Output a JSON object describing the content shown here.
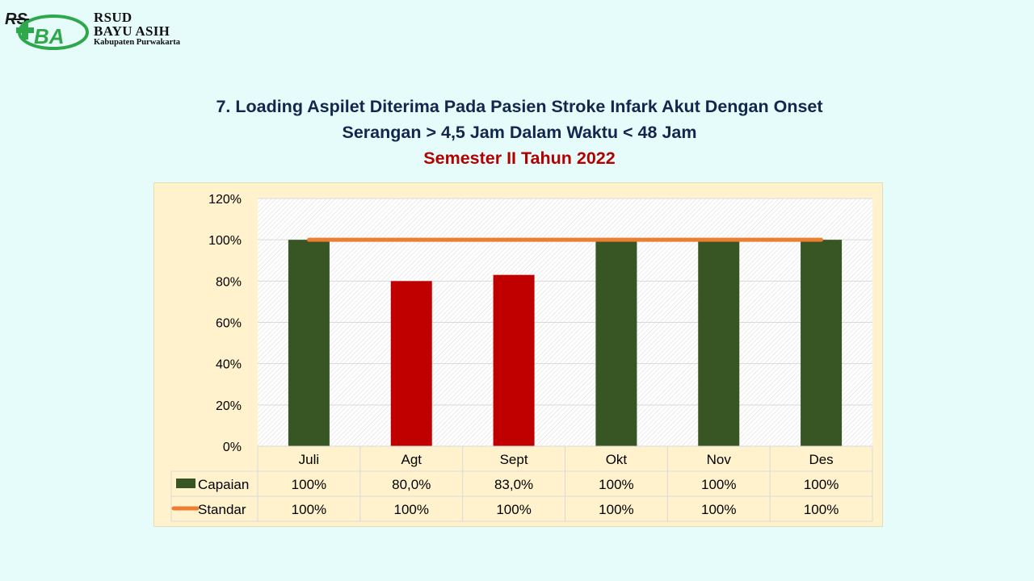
{
  "logo": {
    "line1": "RSUD",
    "line2": "BAYU ASIH",
    "line3": "Kabupaten Purwakarta"
  },
  "title": {
    "line1": "7. Loading Aspilet Diterima Pada Pasien Stroke Infark Akut Dengan Onset",
    "line2": "Serangan > 4,5 Jam Dalam Waktu < 48 Jam",
    "line3": "Semester II Tahun 2022"
  },
  "colors": {
    "background": "#e6fcfa",
    "chart_area": "#fff2cc",
    "bar_green": "#375623",
    "bar_red": "#c00000",
    "line_orange": "#ed7d31",
    "title_navy": "#12264e",
    "title_red": "#b40000"
  },
  "chart_data": {
    "type": "bar",
    "categories": [
      "Juli",
      "Agt",
      "Sept",
      "Okt",
      "Nov",
      "Des"
    ],
    "series": [
      {
        "name": "Capaian",
        "type": "bar",
        "values": [
          100,
          80,
          83,
          100,
          100,
          100
        ],
        "labels": [
          "100%",
          "80,0%",
          "83,0%",
          "100%",
          "100%",
          "100%"
        ],
        "bar_colors": [
          "#375623",
          "#c00000",
          "#c00000",
          "#375623",
          "#375623",
          "#375623"
        ]
      },
      {
        "name": "Standar",
        "type": "line",
        "values": [
          100,
          100,
          100,
          100,
          100,
          100
        ],
        "labels": [
          "100%",
          "100%",
          "100%",
          "100%",
          "100%",
          "100%"
        ],
        "color": "#ed7d31"
      }
    ],
    "ylim": [
      0,
      120
    ],
    "yticks": [
      "0%",
      "20%",
      "40%",
      "60%",
      "80%",
      "100%",
      "120%"
    ],
    "grid": true,
    "data_table": true
  }
}
